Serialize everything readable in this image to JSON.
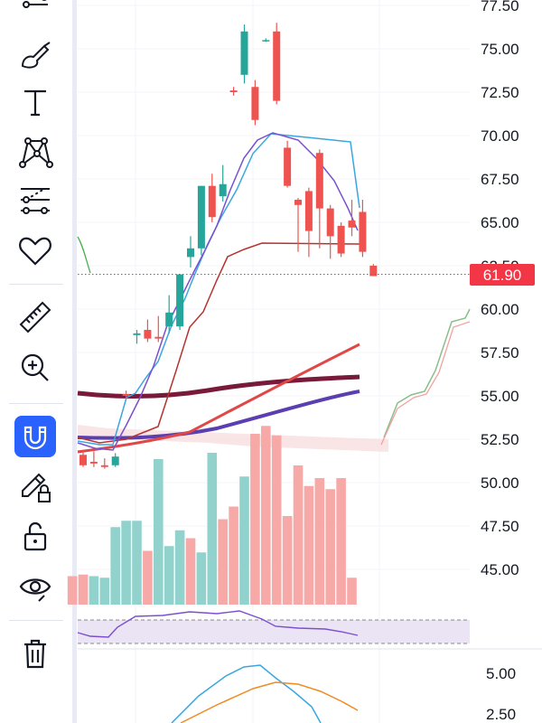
{
  "toolbar": {
    "tools": [
      {
        "id": "lines",
        "icon": "trend-lines-icon"
      },
      {
        "id": "brush",
        "icon": "brush-icon"
      },
      {
        "id": "text",
        "icon": "text-icon",
        "glyph": "T"
      },
      {
        "id": "patterns",
        "icon": "patterns-icon"
      },
      {
        "id": "prediction",
        "icon": "prediction-icon"
      },
      {
        "id": "favorites",
        "icon": "heart-icon"
      },
      {
        "id": "measure",
        "icon": "ruler-icon"
      },
      {
        "id": "zoom",
        "icon": "zoom-in-icon"
      },
      {
        "id": "magnet",
        "icon": "magnet-icon",
        "active": true
      },
      {
        "id": "lock-drawing",
        "icon": "pencil-lock-icon"
      },
      {
        "id": "lock-all",
        "icon": "unlock-icon"
      },
      {
        "id": "hide",
        "icon": "eye-icon"
      },
      {
        "id": "delete",
        "icon": "trash-icon"
      }
    ]
  },
  "colors": {
    "up": "#26a69a",
    "down": "#ef5350",
    "volume_up": "#92d2cc",
    "volume_down": "#f7a9a7",
    "price_tag": "#f23645",
    "magnet_active": "#2962ff"
  },
  "price_axis": {
    "labels": [
      "77.50",
      "75.00",
      "72.50",
      "70.00",
      "67.50",
      "65.00",
      "62.50",
      "60.00",
      "57.50",
      "55.00",
      "52.50",
      "50.00",
      "47.50",
      "45.00"
    ],
    "current_price": "61.90"
  },
  "indicator_axis": {
    "labels": [
      "5.00",
      "2.50"
    ]
  },
  "chart_data": {
    "type": "candlestick",
    "ylim": [
      43.5,
      78.1
    ],
    "candles": [
      {
        "i": 0,
        "o": 51.6,
        "h": 51.9,
        "l": 50.9,
        "c": 51.0
      },
      {
        "i": 1,
        "o": 51.2,
        "h": 51.8,
        "l": 50.9,
        "c": 51.1
      },
      {
        "i": 2,
        "o": 51.0,
        "h": 51.4,
        "l": 50.8,
        "c": 50.9
      },
      {
        "i": 3,
        "o": 51.0,
        "h": 51.7,
        "l": 50.9,
        "c": 51.5
      },
      {
        "i": 4,
        "o": 55.1,
        "h": 55.3,
        "l": 54.8,
        "c": 55.0
      },
      {
        "i": 5,
        "o": 58.5,
        "h": 58.8,
        "l": 58.0,
        "c": 58.6
      },
      {
        "i": 6,
        "o": 58.8,
        "h": 59.4,
        "l": 58.1,
        "c": 58.3
      },
      {
        "i": 7,
        "o": 58.4,
        "h": 59.6,
        "l": 58.1,
        "c": 58.3
      },
      {
        "i": 8,
        "o": 59.0,
        "h": 60.8,
        "l": 58.6,
        "c": 59.8
      },
      {
        "i": 9,
        "o": 59.0,
        "h": 62.0,
        "l": 58.8,
        "c": 62.0
      },
      {
        "i": 10,
        "o": 63.0,
        "h": 64.2,
        "l": 62.4,
        "c": 63.5
      },
      {
        "i": 11,
        "o": 63.5,
        "h": 67.1,
        "l": 63.1,
        "c": 67.1
      },
      {
        "i": 12,
        "o": 67.1,
        "h": 67.8,
        "l": 65.0,
        "c": 65.3
      },
      {
        "i": 13,
        "o": 66.5,
        "h": 68.3,
        "l": 66.2,
        "c": 67.2
      },
      {
        "i": 14,
        "o": 72.6,
        "h": 72.8,
        "l": 72.3,
        "c": 72.5
      },
      {
        "i": 15,
        "o": 73.5,
        "h": 76.4,
        "l": 73.0,
        "c": 76.0
      },
      {
        "i": 16,
        "o": 72.8,
        "h": 73.2,
        "l": 70.6,
        "c": 70.9
      },
      {
        "i": 17,
        "o": 75.5,
        "h": 75.6,
        "l": 75.4,
        "c": 75.5
      },
      {
        "i": 18,
        "o": 76.0,
        "h": 76.5,
        "l": 71.8,
        "c": 72.0
      },
      {
        "i": 19,
        "o": 69.3,
        "h": 69.7,
        "l": 67.0,
        "c": 67.1
      },
      {
        "i": 20,
        "o": 66.3,
        "h": 66.4,
        "l": 63.3,
        "c": 66.0
      },
      {
        "i": 21,
        "o": 66.8,
        "h": 67.0,
        "l": 63.0,
        "c": 64.5
      },
      {
        "i": 22,
        "o": 69.0,
        "h": 69.2,
        "l": 63.5,
        "c": 65.8
      },
      {
        "i": 23,
        "o": 65.8,
        "h": 66.0,
        "l": 62.9,
        "c": 64.2
      },
      {
        "i": 24,
        "o": 64.8,
        "h": 65.0,
        "l": 63.0,
        "c": 63.2
      },
      {
        "i": 25,
        "o": 65.1,
        "h": 66.3,
        "l": 64.2,
        "c": 64.7
      },
      {
        "i": 26,
        "o": 65.6,
        "h": 66.3,
        "l": 63.0,
        "c": 63.3
      },
      {
        "i": 27,
        "o": 62.5,
        "h": 62.6,
        "l": 61.9,
        "c": 61.9
      }
    ],
    "volume_levels": [
      {
        "i": -1,
        "v": 0.18,
        "dir": "down"
      },
      {
        "i": 0,
        "v": 0.19,
        "dir": "down"
      },
      {
        "i": 1,
        "v": 0.18,
        "dir": "up"
      },
      {
        "i": 2,
        "v": 0.17,
        "dir": "up"
      },
      {
        "i": 3,
        "v": 0.49,
        "dir": "up"
      },
      {
        "i": 4,
        "v": 0.53,
        "dir": "up"
      },
      {
        "i": 5,
        "v": 0.53,
        "dir": "up"
      },
      {
        "i": 6,
        "v": 0.34,
        "dir": "down"
      },
      {
        "i": 7,
        "v": 0.92,
        "dir": "up"
      },
      {
        "i": 8,
        "v": 0.37,
        "dir": "up"
      },
      {
        "i": 9,
        "v": 0.47,
        "dir": "up"
      },
      {
        "i": 10,
        "v": 0.42,
        "dir": "down"
      },
      {
        "i": 11,
        "v": 0.33,
        "dir": "up"
      },
      {
        "i": 12,
        "v": 0.96,
        "dir": "up"
      },
      {
        "i": 13,
        "v": 0.54,
        "dir": "down"
      },
      {
        "i": 14,
        "v": 0.62,
        "dir": "down"
      },
      {
        "i": 15,
        "v": 0.81,
        "dir": "up"
      },
      {
        "i": 16,
        "v": 1.08,
        "dir": "down"
      },
      {
        "i": 17,
        "v": 1.13,
        "dir": "down"
      },
      {
        "i": 18,
        "v": 1.07,
        "dir": "down"
      },
      {
        "i": 19,
        "v": 0.56,
        "dir": "down"
      },
      {
        "i": 20,
        "v": 0.88,
        "dir": "down"
      },
      {
        "i": 21,
        "v": 0.75,
        "dir": "down"
      },
      {
        "i": 22,
        "v": 0.8,
        "dir": "down"
      },
      {
        "i": 23,
        "v": 0.73,
        "dir": "down"
      },
      {
        "i": 24,
        "v": 0.8,
        "dir": "down"
      },
      {
        "i": 25,
        "v": 0.17,
        "dir": "down"
      }
    ]
  }
}
